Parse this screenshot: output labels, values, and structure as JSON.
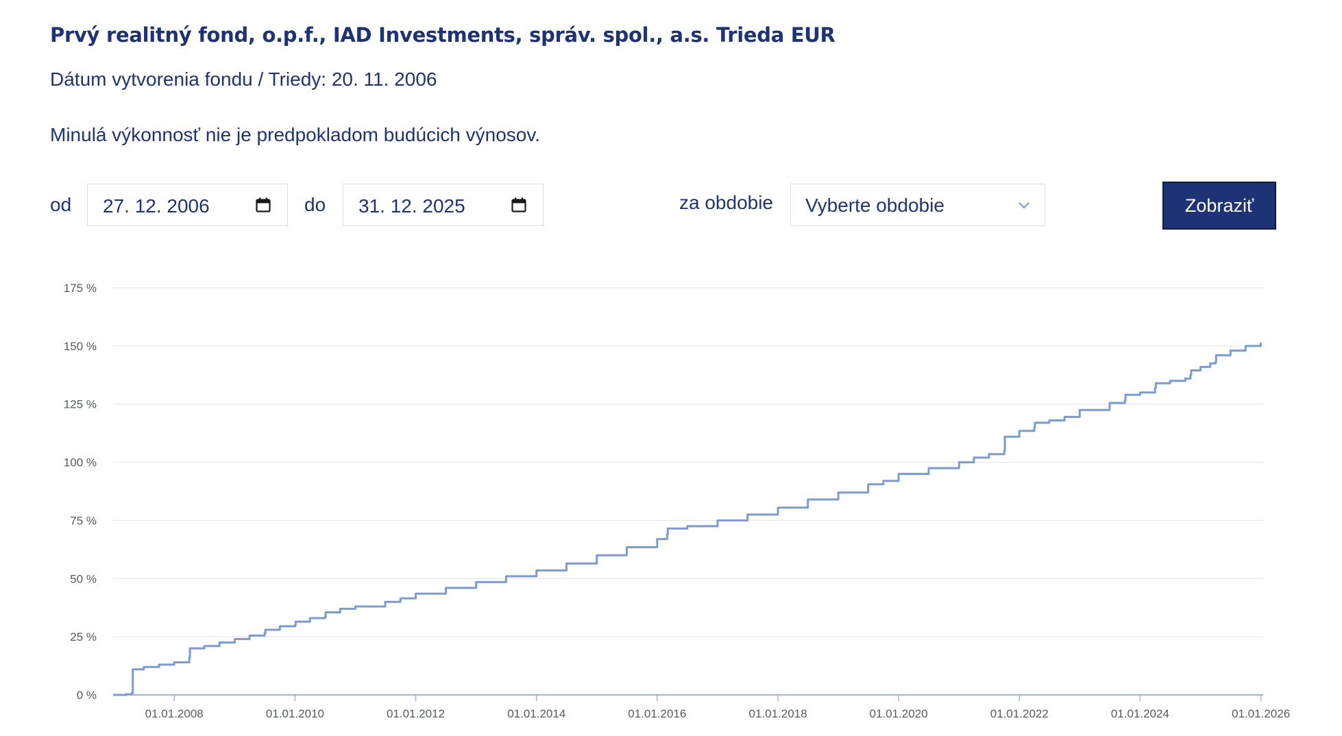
{
  "page": {
    "title": "Prvý realitný fond, o.p.f., IAD Investments, správ. spol., a.s. Trieda EUR",
    "founding": "Dátum vytvorenia fondu / Triedy: 20. 11. 2006",
    "disclaimer": "Minulá výkonnosť nie je predpokladom budúcich výnosov."
  },
  "filters": {
    "from_label": "od",
    "from_value": "27. 12. 2006",
    "to_label": "do",
    "to_value": "31. 12. 2025",
    "period_label": "za obdobie",
    "period_value": "Vyberte obdobie",
    "submit_label": "Zobraziť"
  },
  "icons": {
    "calendar": "calendar-icon",
    "chevron": "chevron-down-icon"
  },
  "colors": {
    "brand": "#1e3375",
    "line": "#7b9bd6",
    "grid": "#e6e8ec",
    "axis": "#9fb4de"
  },
  "chart_data": {
    "type": "line",
    "title": "",
    "xlabel": "",
    "ylabel": "",
    "ylim": [
      0,
      175
    ],
    "xlim": [
      "2006-12-27",
      "2026-01-15"
    ],
    "grid": true,
    "y_ticks": [
      "0 %",
      "25 %",
      "50 %",
      "75 %",
      "100 %",
      "125 %",
      "150 %",
      "175 %"
    ],
    "x_ticks": [
      "01.01.2008",
      "01.01.2010",
      "01.01.2012",
      "01.01.2014",
      "01.01.2016",
      "01.01.2018",
      "01.01.2020",
      "01.01.2022",
      "01.01.2024",
      "01.01.2026"
    ],
    "series": [
      {
        "name": "",
        "x": [
          "2006-12-27",
          "2007-03-15",
          "2007-04-20",
          "2007-04-25",
          "2007-07-01",
          "2007-10-01",
          "2008-01-01",
          "2008-04-01",
          "2008-04-05",
          "2008-07-01",
          "2008-10-01",
          "2009-01-01",
          "2009-04-01",
          "2009-07-01",
          "2009-07-05",
          "2009-10-01",
          "2010-01-01",
          "2010-01-05",
          "2010-04-01",
          "2010-07-01",
          "2010-07-05",
          "2010-10-01",
          "2011-01-01",
          "2011-07-01",
          "2011-10-01",
          "2012-01-01",
          "2012-07-01",
          "2013-01-01",
          "2013-07-01",
          "2014-01-01",
          "2014-07-01",
          "2015-01-01",
          "2015-07-01",
          "2016-01-01",
          "2016-03-01",
          "2016-03-05",
          "2016-07-01",
          "2017-01-01",
          "2017-07-01",
          "2018-01-01",
          "2018-07-01",
          "2019-01-01",
          "2019-07-01",
          "2019-10-01",
          "2020-01-01",
          "2020-07-01",
          "2021-01-01",
          "2021-04-01",
          "2021-07-01",
          "2021-10-01",
          "2021-10-05",
          "2022-01-01",
          "2022-04-01",
          "2022-04-05",
          "2022-07-01",
          "2022-10-01",
          "2023-01-01",
          "2023-07-01",
          "2023-10-01",
          "2023-10-05",
          "2024-01-01",
          "2024-04-01",
          "2024-04-05",
          "2024-07-01",
          "2024-10-01",
          "2024-11-01",
          "2024-11-05",
          "2025-01-01",
          "2025-03-01",
          "2025-04-01",
          "2025-04-05",
          "2025-07-01",
          "2025-10-01",
          "2025-12-31"
        ],
        "values": [
          0,
          0.3,
          0.8,
          11,
          12,
          13,
          14,
          16,
          20,
          21,
          22.5,
          24,
          25.5,
          26.5,
          28,
          29.5,
          30,
          31.5,
          33,
          33.5,
          35.5,
          37,
          38,
          40,
          41.5,
          43.5,
          46,
          48.5,
          51,
          53.5,
          56.5,
          60,
          63.5,
          67,
          69,
          71.5,
          72.5,
          75,
          77.5,
          80.5,
          84,
          87,
          90.5,
          92,
          95,
          97.5,
          100,
          102,
          103.5,
          105,
          111,
          113.5,
          115,
          117,
          118,
          119.5,
          122.5,
          125.5,
          126.5,
          129,
          130,
          132,
          134,
          135,
          136,
          137.5,
          139.5,
          141,
          142.5,
          143,
          146,
          148,
          150,
          151.5
        ]
      }
    ]
  }
}
